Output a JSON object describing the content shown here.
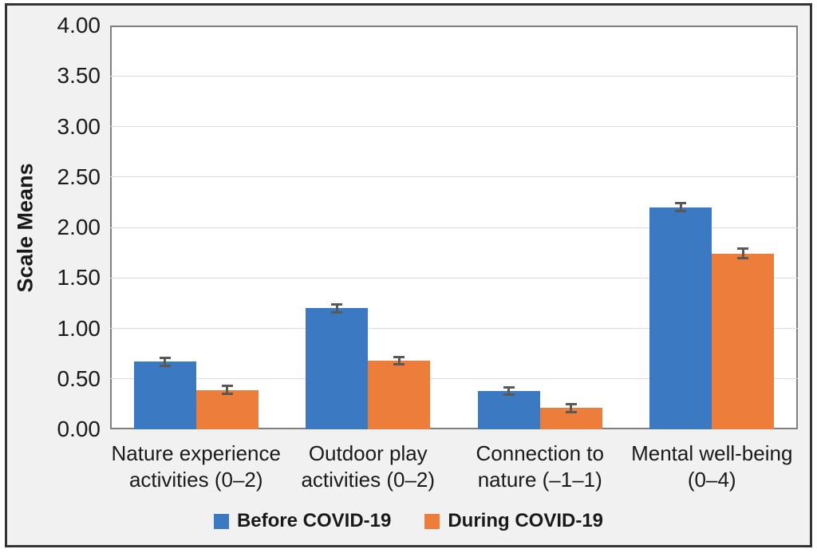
{
  "chart_data": {
    "type": "bar",
    "title": "",
    "xlabel": "",
    "ylabel": "Scale Means",
    "ylim": [
      0,
      4
    ],
    "ytick_step": 0.5,
    "ytick_labels": [
      "0.00",
      "0.50",
      "1.00",
      "1.50",
      "2.00",
      "2.50",
      "3.00",
      "3.50",
      "4.00"
    ],
    "grid": true,
    "legend_position": "bottom",
    "categories": [
      [
        "Nature experience",
        "activities (0–2)"
      ],
      [
        "Outdoor play",
        "activities (0–2)"
      ],
      [
        "Connection to",
        "nature (–1–1)"
      ],
      [
        "Mental well-being",
        "(0–4)"
      ]
    ],
    "series": [
      {
        "name": "Before COVID-19",
        "color": "#3C79C3",
        "values": [
          0.67,
          1.2,
          0.38,
          2.2
        ],
        "errors": [
          0.05,
          0.05,
          0.05,
          0.05
        ]
      },
      {
        "name": "During COVID-19",
        "color": "#ED7D3B",
        "values": [
          0.39,
          0.68,
          0.21,
          1.74
        ],
        "errors": [
          0.05,
          0.05,
          0.05,
          0.06
        ]
      }
    ],
    "error_bar_color": "#595959"
  }
}
